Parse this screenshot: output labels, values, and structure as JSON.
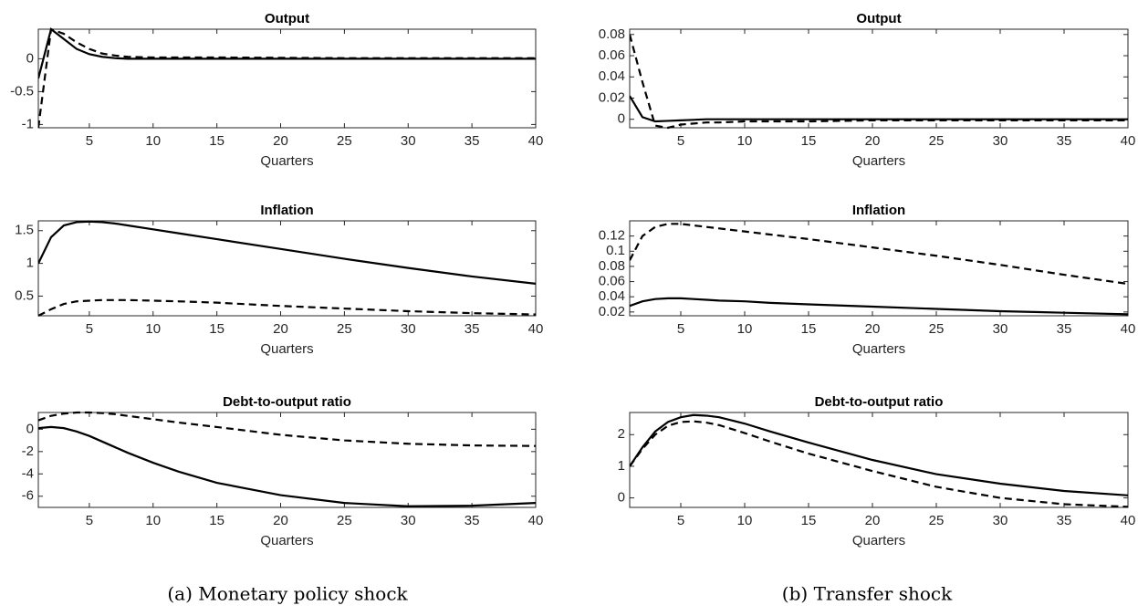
{
  "chart_data": [
    {
      "type": "line",
      "title": "Output",
      "xlabel": "Quarters",
      "x": [
        1,
        2,
        3,
        4,
        5,
        6,
        7,
        8,
        10,
        12,
        15,
        20,
        25,
        30,
        35,
        40
      ],
      "xlim": [
        1,
        40
      ],
      "xticks": [
        5,
        10,
        15,
        20,
        25,
        30,
        35,
        40
      ],
      "ylim": [
        -1.05,
        0.45
      ],
      "yticks": [
        -1,
        -0.5,
        0
      ],
      "series": [
        {
          "style": "solid",
          "color": "#000000",
          "values": [
            -0.3,
            0.45,
            0.3,
            0.15,
            0.07,
            0.03,
            0.01,
            0,
            0,
            0,
            0,
            0,
            0,
            0,
            0,
            0
          ]
        },
        {
          "style": "dashed",
          "color": "#000000",
          "values": [
            -1.05,
            0.45,
            0.38,
            0.25,
            0.15,
            0.08,
            0.05,
            0.03,
            0.02,
            0.02,
            0.02,
            0.015,
            0.01,
            0.01,
            0.01,
            0.01
          ]
        }
      ]
    },
    {
      "type": "line",
      "title": "Inflation",
      "xlabel": "Quarters",
      "x": [
        1,
        2,
        3,
        4,
        5,
        6,
        7,
        8,
        10,
        12,
        15,
        20,
        25,
        30,
        35,
        40
      ],
      "xlim": [
        1,
        40
      ],
      "xticks": [
        5,
        10,
        15,
        20,
        25,
        30,
        35,
        40
      ],
      "ylim": [
        0.2,
        1.65
      ],
      "yticks": [
        0.5,
        1,
        1.5
      ],
      "series": [
        {
          "style": "solid",
          "color": "#000000",
          "values": [
            1.0,
            1.4,
            1.58,
            1.63,
            1.64,
            1.63,
            1.61,
            1.58,
            1.52,
            1.46,
            1.37,
            1.22,
            1.07,
            0.93,
            0.8,
            0.69
          ]
        },
        {
          "style": "dashed",
          "color": "#000000",
          "values": [
            0.2,
            0.3,
            0.38,
            0.42,
            0.43,
            0.44,
            0.44,
            0.44,
            0.43,
            0.42,
            0.4,
            0.35,
            0.31,
            0.27,
            0.24,
            0.22
          ]
        }
      ]
    },
    {
      "type": "line",
      "title": "Debt-to-output ratio",
      "xlabel": "Quarters",
      "x": [
        1,
        2,
        3,
        4,
        5,
        6,
        7,
        8,
        10,
        12,
        15,
        20,
        25,
        30,
        35,
        40
      ],
      "xlim": [
        1,
        40
      ],
      "xticks": [
        5,
        10,
        15,
        20,
        25,
        30,
        35,
        40
      ],
      "ylim": [
        -7,
        1.5
      ],
      "yticks": [
        -6,
        -4,
        -2,
        0
      ],
      "series": [
        {
          "style": "solid",
          "color": "#000000",
          "values": [
            0.1,
            0.2,
            0.1,
            -0.2,
            -0.6,
            -1.1,
            -1.6,
            -2.1,
            -3.0,
            -3.8,
            -4.8,
            -5.9,
            -6.6,
            -6.9,
            -6.85,
            -6.6
          ]
        },
        {
          "style": "dashed",
          "color": "#000000",
          "values": [
            0.8,
            1.2,
            1.4,
            1.5,
            1.5,
            1.45,
            1.35,
            1.2,
            0.9,
            0.6,
            0.2,
            -0.5,
            -1.0,
            -1.3,
            -1.45,
            -1.5
          ]
        }
      ]
    },
    {
      "type": "line",
      "title": "Output",
      "xlabel": "Quarters",
      "x": [
        1,
        2,
        3,
        4,
        5,
        6,
        7,
        8,
        10,
        12,
        15,
        20,
        25,
        30,
        35,
        40
      ],
      "xlim": [
        1,
        40
      ],
      "xticks": [
        5,
        10,
        15,
        20,
        25,
        30,
        35,
        40
      ],
      "ylim": [
        -0.008,
        0.085
      ],
      "yticks": [
        0,
        0.02,
        0.04,
        0.06,
        0.08
      ],
      "series": [
        {
          "style": "solid",
          "color": "#000000",
          "values": [
            0.022,
            0.002,
            -0.002,
            -0.0015,
            -0.001,
            -0.0005,
            0,
            0,
            0,
            0,
            0,
            0,
            0,
            0,
            0,
            0
          ]
        },
        {
          "style": "dashed",
          "color": "#000000",
          "values": [
            0.08,
            0.035,
            -0.006,
            -0.008,
            -0.005,
            -0.004,
            -0.003,
            -0.003,
            -0.002,
            -0.002,
            -0.002,
            -0.001,
            -0.001,
            -0.001,
            -0.001,
            -0.001
          ]
        }
      ]
    },
    {
      "type": "line",
      "title": "Inflation",
      "xlabel": "Quarters",
      "x": [
        1,
        2,
        3,
        4,
        5,
        6,
        7,
        8,
        10,
        12,
        15,
        20,
        25,
        30,
        35,
        40
      ],
      "xlim": [
        1,
        40
      ],
      "xticks": [
        5,
        10,
        15,
        20,
        25,
        30,
        35,
        40
      ],
      "ylim": [
        0.015,
        0.14
      ],
      "yticks": [
        0.02,
        0.04,
        0.06,
        0.08,
        0.1,
        0.12
      ],
      "series": [
        {
          "style": "solid",
          "color": "#000000",
          "values": [
            0.028,
            0.034,
            0.037,
            0.038,
            0.038,
            0.037,
            0.036,
            0.035,
            0.034,
            0.032,
            0.03,
            0.027,
            0.024,
            0.021,
            0.019,
            0.017
          ]
        },
        {
          "style": "dashed",
          "color": "#000000",
          "values": [
            0.088,
            0.12,
            0.132,
            0.136,
            0.136,
            0.134,
            0.132,
            0.13,
            0.126,
            0.122,
            0.116,
            0.105,
            0.094,
            0.082,
            0.069,
            0.057
          ]
        }
      ]
    },
    {
      "type": "line",
      "title": "Debt-to-output ratio",
      "xlabel": "Quarters",
      "x": [
        1,
        2,
        3,
        4,
        5,
        6,
        7,
        8,
        10,
        12,
        15,
        20,
        25,
        30,
        35,
        40
      ],
      "xlim": [
        1,
        40
      ],
      "xticks": [
        5,
        10,
        15,
        20,
        25,
        30,
        35,
        40
      ],
      "ylim": [
        -0.3,
        2.7
      ],
      "yticks": [
        0,
        1,
        2
      ],
      "series": [
        {
          "style": "solid",
          "color": "#000000",
          "values": [
            1.0,
            1.6,
            2.1,
            2.4,
            2.55,
            2.62,
            2.6,
            2.55,
            2.35,
            2.1,
            1.75,
            1.2,
            0.75,
            0.45,
            0.22,
            0.08
          ]
        },
        {
          "style": "dashed",
          "color": "#000000",
          "values": [
            1.0,
            1.55,
            2.0,
            2.28,
            2.4,
            2.42,
            2.38,
            2.3,
            2.05,
            1.78,
            1.4,
            0.85,
            0.35,
            0.0,
            -0.2,
            -0.28
          ]
        }
      ]
    }
  ],
  "captions": [
    "(a) Monetary policy shock",
    "(b) Transfer shock"
  ]
}
